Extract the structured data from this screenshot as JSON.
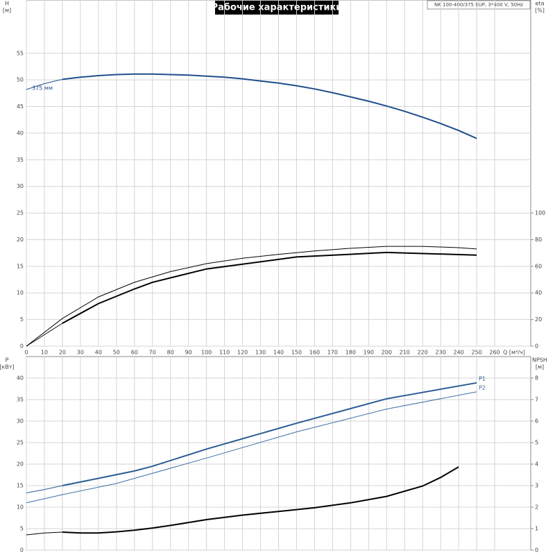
{
  "chart_data": [
    {
      "type": "line",
      "title": "Рабочие характеристики",
      "annotation": "NK 100-400/375 EUP, 3*400 V, 50Hz",
      "y_label": "H",
      "y_unit": "[м]",
      "y2_label": "eta",
      "y2_unit": "[%]",
      "x_label": "Q [м³/ч]",
      "xlim": [
        0,
        280
      ],
      "xticks": [
        0,
        10,
        20,
        30,
        40,
        50,
        60,
        70,
        80,
        90,
        100,
        110,
        120,
        130,
        140,
        150,
        160,
        170,
        180,
        190,
        200,
        210,
        220,
        230,
        240,
        250,
        260
      ],
      "ylim": [
        0,
        65
      ],
      "yticks": [
        0,
        5,
        10,
        15,
        20,
        25,
        30,
        35,
        40,
        45,
        50,
        55
      ],
      "y2lim": [
        0,
        260
      ],
      "y2ticks": [
        0,
        20,
        40,
        60,
        80,
        100
      ],
      "grid": true,
      "xtick_labels": true,
      "series": [
        {
          "name": "375 мм",
          "label_at": "start",
          "color": "#1f4e8c",
          "width": 1,
          "x": [
            0,
            10,
            20
          ],
          "values": [
            48.2,
            49.3,
            50.1
          ]
        },
        {
          "color": "#1f4e8c",
          "width": 2,
          "x": [
            20,
            30,
            40,
            50,
            60,
            70,
            80,
            90,
            100,
            110,
            120,
            130,
            140,
            150,
            160,
            170,
            180,
            190,
            200,
            210,
            220,
            230,
            240,
            250
          ],
          "values": [
            50.1,
            50.5,
            50.8,
            51.0,
            51.1,
            51.1,
            51.0,
            50.9,
            50.7,
            50.5,
            50.2,
            49.8,
            49.4,
            48.9,
            48.3,
            47.6,
            46.8,
            46.0,
            45.1,
            44.1,
            43.0,
            41.8,
            40.5,
            39.0
          ]
        },
        {
          "color": "#000000",
          "width": 1,
          "axis": "y2",
          "x": [
            0,
            20,
            40,
            60,
            80,
            100,
            120,
            140,
            160,
            180,
            200,
            220,
            240,
            250
          ],
          "values": [
            0,
            20.8,
            37,
            48,
            56,
            62,
            66,
            69,
            71.5,
            73.5,
            75,
            75,
            74,
            73
          ]
        },
        {
          "color": "#000000",
          "width": 1,
          "axis": "y2",
          "x": [
            0,
            20
          ],
          "values": [
            0,
            17.2
          ]
        },
        {
          "color": "#000000",
          "width": 2,
          "axis": "y2",
          "x": [
            20,
            40,
            60,
            70,
            100,
            150,
            200,
            250
          ],
          "values": [
            17.2,
            32,
            43,
            48,
            58,
            67,
            70.4,
            68.4
          ]
        }
      ]
    },
    {
      "type": "line",
      "y_label": "P",
      "y_unit": "[кВт]",
      "y2_label": "NPSH",
      "y2_unit": "[м]",
      "xlim": [
        0,
        280
      ],
      "xticks": [
        0,
        10,
        20,
        30,
        40,
        50,
        60,
        70,
        80,
        90,
        100,
        110,
        120,
        130,
        140,
        150,
        160,
        170,
        180,
        190,
        200,
        210,
        220,
        230,
        240,
        250,
        260
      ],
      "ylim": [
        0,
        45
      ],
      "yticks": [
        0,
        5,
        10,
        15,
        20,
        25,
        30,
        35,
        40
      ],
      "y2lim": [
        0,
        9
      ],
      "y2ticks": [
        0,
        1,
        2,
        3,
        4,
        5,
        6,
        7,
        8
      ],
      "grid": true,
      "xtick_labels": false,
      "series": [
        {
          "color": "#2a5b94",
          "width": 1,
          "x": [
            0,
            10,
            20
          ],
          "values": [
            13.3,
            14.1,
            15
          ]
        },
        {
          "name": "P1",
          "label_at": "end",
          "color": "#2a5b94",
          "width": 2,
          "x": [
            20,
            40,
            60,
            70,
            100,
            150,
            200,
            250
          ],
          "values": [
            15,
            16.7,
            18.4,
            19.5,
            23.5,
            29.5,
            35.2,
            38.9
          ]
        },
        {
          "name": "P2",
          "label_at": "end",
          "color": "#3b6ea5",
          "width": 1,
          "x": [
            0,
            20,
            50,
            100,
            150,
            200,
            250
          ],
          "values": [
            11,
            12.9,
            15.5,
            21.4,
            27.5,
            32.8,
            36.8
          ]
        },
        {
          "color": "#000000",
          "width": 1,
          "axis": "y2",
          "x": [
            0,
            10,
            20
          ],
          "values": [
            0.71,
            0.8,
            0.84
          ]
        },
        {
          "color": "#000000",
          "width": 2,
          "axis": "y2",
          "x": [
            20,
            30,
            40,
            50,
            60,
            70,
            80,
            100,
            120,
            140,
            160,
            180,
            200,
            220,
            230,
            240
          ],
          "values": [
            0.84,
            0.8,
            0.8,
            0.85,
            0.93,
            1.03,
            1.15,
            1.42,
            1.63,
            1.8,
            1.97,
            2.2,
            2.5,
            2.98,
            3.38,
            3.87
          ]
        }
      ]
    }
  ]
}
